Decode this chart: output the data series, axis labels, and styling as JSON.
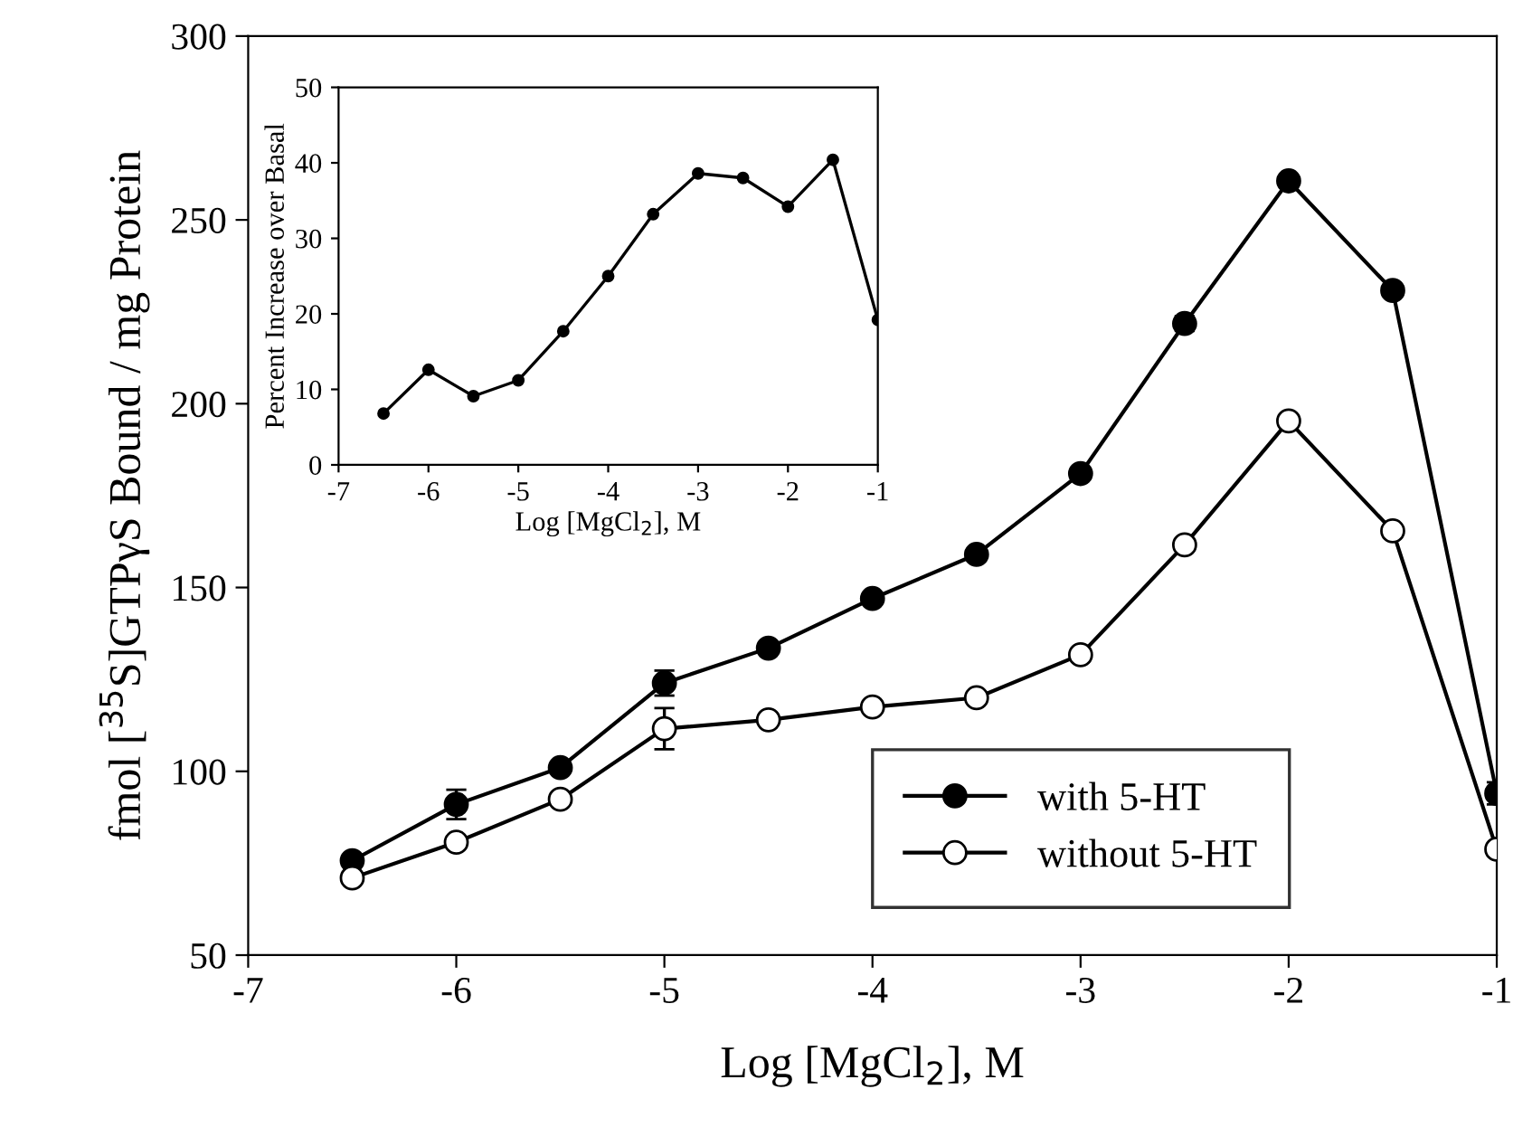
{
  "chart_data": [
    {
      "type": "line",
      "xlabel": "Log [MgCl$_{2}$], M",
      "ylabel": "fmol [$^{35}$S]GTPγS Bound / mg Protein",
      "x": [
        -6.5,
        -6,
        -5.5,
        -5,
        -4.5,
        -4,
        -3.5,
        -3,
        -2.5,
        -2,
        -1.5,
        -1
      ],
      "xlim": [
        -7,
        -1
      ],
      "xticks": [
        -7,
        -6,
        -5,
        -4,
        -3,
        -2,
        -1
      ],
      "ylim": [
        50,
        300
      ],
      "yticks": [
        50,
        100,
        150,
        200,
        250,
        300
      ],
      "marker": "circle",
      "line_style": "solid",
      "grid": false,
      "legend": "bottom right",
      "series": [
        {
          "name": "with 5-HT",
          "color": "#000000",
          "values": [
            75.7,
            91,
            101,
            124,
            133.5,
            147,
            159,
            181,
            221.8,
            260.6,
            230.8,
            94
          ],
          "errors": [
            null,
            4,
            null,
            3.4,
            null,
            null,
            null,
            null,
            2,
            null,
            null,
            3
          ]
        },
        {
          "name": "without 5-HT",
          "color": "#ffffff",
          "values": [
            71,
            80.7,
            92.4,
            111.6,
            114,
            117.5,
            120,
            131.7,
            161.6,
            195.3,
            165.4,
            78.8
          ],
          "errors": [
            null,
            null,
            null,
            5.6,
            null,
            null,
            null,
            null,
            null,
            null,
            null,
            null
          ]
        }
      ]
    },
    {
      "type": "line",
      "xlabel": "Log [MgCl$_{2}$], M",
      "ylabel": "Percent Increase over Basal",
      "x": [
        -6.5,
        -6,
        -5.5,
        -5,
        -4.5,
        -4,
        -3.5,
        -3,
        -2.5,
        -2,
        -1.5,
        -1
      ],
      "xlim": [
        -7,
        -1
      ],
      "xticks": [
        -7,
        -6,
        -5,
        -4,
        -3,
        -2,
        -1
      ],
      "ylim": [
        0,
        50
      ],
      "yticks": [
        0,
        10,
        20,
        30,
        40,
        50
      ],
      "marker": "circle",
      "line_style": "solid",
      "grid": false,
      "legend": false,
      "series": [
        {
          "color": "#000000",
          "values": [
            6.8,
            12.6,
            9.1,
            11.2,
            17.7,
            25.0,
            33.2,
            38.6,
            38.0,
            34.2,
            40.4,
            19.2
          ]
        }
      ]
    }
  ]
}
